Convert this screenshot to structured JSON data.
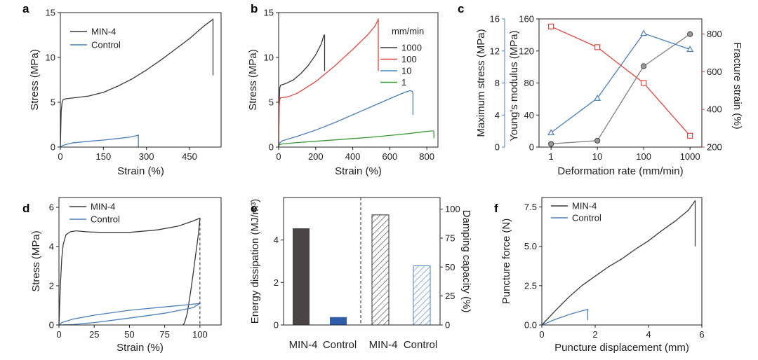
{
  "colors": {
    "black": "#3a3a3a",
    "blue": "#4a7fc1",
    "red": "#e8453c",
    "green": "#3a9a35",
    "gray": "#808080",
    "dark": "#4a4545",
    "navy": "#2f5fa8"
  },
  "chart_data": [
    {
      "panel": "a",
      "type": "line",
      "xlabel": "Strain (%)",
      "ylabel": "Stress (MPa)",
      "xlim": [
        0,
        560
      ],
      "ylim": [
        0,
        15
      ],
      "xticks": [
        "0",
        "150",
        "300",
        "450"
      ],
      "yticks": [
        "0",
        "5",
        "10",
        "15"
      ],
      "series": [
        {
          "name": "MIN-4",
          "color": "black",
          "x": [
            0,
            3,
            6,
            10,
            20,
            50,
            100,
            150,
            200,
            250,
            300,
            350,
            400,
            450,
            500,
            530,
            532,
            532
          ],
          "y": [
            0,
            4.0,
            5.0,
            5.3,
            5.4,
            5.5,
            5.7,
            6.1,
            6.8,
            7.6,
            8.6,
            9.7,
            10.9,
            12.1,
            13.5,
            14.2,
            14.3,
            8.0
          ]
        },
        {
          "name": "Control",
          "color": "blue",
          "x": [
            0,
            10,
            40,
            100,
            150,
            200,
            240,
            268,
            272,
            272
          ],
          "y": [
            0,
            0.2,
            0.45,
            0.65,
            0.78,
            0.95,
            1.1,
            1.3,
            1.35,
            0.0
          ]
        }
      ],
      "legend": [
        "MIN-4",
        "Control"
      ]
    },
    {
      "panel": "b",
      "type": "line",
      "xlabel": "Strain (%)",
      "ylabel": "Stress (MPa)",
      "xlim": [
        0,
        860
      ],
      "ylim": [
        0,
        15
      ],
      "xticks": [
        "0",
        "200",
        "400",
        "600",
        "800"
      ],
      "yticks": [
        "0",
        "5",
        "10",
        "15"
      ],
      "legend_title": "mm/min",
      "series": [
        {
          "name": "1000",
          "color": "black",
          "x": [
            0,
            3,
            6,
            10,
            40,
            80,
            120,
            160,
            200,
            230,
            245,
            248,
            248
          ],
          "y": [
            0,
            5.0,
            6.6,
            6.9,
            7.1,
            7.5,
            8.2,
            9.1,
            10.3,
            11.5,
            12.5,
            12.5,
            8.5
          ]
        },
        {
          "name": "100",
          "color": "red",
          "x": [
            0,
            3,
            6,
            10,
            50,
            100,
            200,
            300,
            400,
            480,
            520,
            535,
            538,
            538
          ],
          "y": [
            0,
            4.5,
            5.3,
            5.5,
            5.6,
            6.0,
            7.3,
            9.0,
            10.9,
            12.5,
            13.5,
            14.1,
            14.3,
            8.5
          ]
        },
        {
          "name": "10",
          "color": "blue",
          "x": [
            0,
            3,
            20,
            100,
            200,
            300,
            400,
            500,
            600,
            680,
            710,
            722,
            725,
            725
          ],
          "y": [
            0,
            0.4,
            0.7,
            1.2,
            1.9,
            2.7,
            3.6,
            4.5,
            5.4,
            6.1,
            6.3,
            6.2,
            6.0,
            3.6
          ]
        },
        {
          "name": "1",
          "color": "green",
          "x": [
            0,
            3,
            20,
            100,
            200,
            300,
            400,
            500,
            600,
            700,
            780,
            820,
            835,
            838,
            838
          ],
          "y": [
            0,
            0.25,
            0.35,
            0.5,
            0.65,
            0.8,
            0.95,
            1.1,
            1.3,
            1.5,
            1.7,
            1.8,
            1.8,
            1.7,
            1.0
          ]
        }
      ],
      "legend": [
        "1000",
        "100",
        "10",
        "1"
      ]
    },
    {
      "panel": "c",
      "type": "line",
      "xlabel": "Deformation rate (mm/min)",
      "ylabel_left_outer": "Maximum stress (MPa)",
      "ylabel_left_inner": "Young's modulus (MPa)",
      "ylabel_right": "Fracture strain (%)",
      "x": [
        1,
        10,
        100,
        1000
      ],
      "xticks": [
        "1",
        "10",
        "100",
        "1000"
      ],
      "yticks_left": [
        "0",
        "40",
        "80",
        "120",
        "160"
      ],
      "yticks_outer": [
        "0",
        "4",
        "8",
        "12",
        "16"
      ],
      "yticks_right": [
        "200",
        "400",
        "600",
        "800"
      ],
      "ylim_left": [
        0,
        160
      ],
      "ylim_outer": [
        0,
        16
      ],
      "ylim_right": [
        200,
        880
      ],
      "series": [
        {
          "name": "Young's modulus",
          "color": "gray",
          "marker": "circle",
          "axis": "left",
          "values": [
            4,
            8,
            101,
            141
          ]
        },
        {
          "name": "Maximum stress",
          "color": "blue",
          "marker": "triangle",
          "axis": "outer",
          "values": [
            1.8,
            6.1,
            14.2,
            12.2
          ]
        },
        {
          "name": "Fracture strain",
          "color": "red",
          "marker": "square",
          "axis": "right",
          "values": [
            840,
            730,
            540,
            260
          ]
        }
      ]
    },
    {
      "panel": "d",
      "type": "line",
      "xlabel": "Strain (%)",
      "ylabel": "Stress (MPa)",
      "xlim": [
        0,
        115
      ],
      "ylim": [
        0,
        6.5
      ],
      "xticks": [
        "0",
        "25",
        "50",
        "75",
        "100"
      ],
      "yticks": [
        "0",
        "2",
        "4",
        "6"
      ],
      "series": [
        {
          "name": "MIN-4",
          "color": "black",
          "x": [
            0,
            1,
            2,
            3,
            5,
            8,
            12,
            20,
            30,
            50,
            70,
            85,
            95,
            100,
            99,
            97,
            95,
            93,
            91,
            89,
            88
          ],
          "y": [
            0,
            2.0,
            3.4,
            4.1,
            4.6,
            4.75,
            4.8,
            4.75,
            4.72,
            4.72,
            4.85,
            5.05,
            5.3,
            5.45,
            4.7,
            3.6,
            2.5,
            1.5,
            0.6,
            0.1,
            0
          ]
        },
        {
          "name": "Control",
          "color": "blue",
          "x": [
            0,
            2,
            10,
            25,
            50,
            75,
            90,
            100,
            95,
            75,
            50,
            25,
            10,
            0
          ],
          "y": [
            0,
            0.12,
            0.3,
            0.5,
            0.75,
            0.92,
            1.02,
            1.1,
            0.88,
            0.6,
            0.35,
            0.12,
            0.02,
            0
          ]
        }
      ],
      "legend": [
        "MIN-4",
        "Control"
      ]
    },
    {
      "panel": "e",
      "type": "bar",
      "ylabel_left": "Energy dissipation (MJ/m³)",
      "ylabel_right": "Damping capacity (%)",
      "ylim_left": [
        0,
        6
      ],
      "ylim_right": [
        0,
        110
      ],
      "yticks_left": [
        "0",
        "2",
        "4"
      ],
      "yticks_right": [
        "0",
        "25",
        "50",
        "75",
        "100"
      ],
      "categories": [
        "MIN-4",
        "Control",
        "MIN-4",
        "Control"
      ],
      "energy": [
        4.55,
        0.37
      ],
      "damping": [
        95,
        51
      ]
    },
    {
      "panel": "f",
      "type": "line",
      "xlabel": "Puncture displacement (mm)",
      "ylabel": "Puncture force (N)",
      "xlim": [
        0,
        6
      ],
      "ylim": [
        0,
        8.1
      ],
      "xticks": [
        "0",
        "2",
        "4",
        "6"
      ],
      "yticks": [
        "0.0",
        "2.5",
        "5.0",
        "7.5"
      ],
      "series": [
        {
          "name": "MIN-4",
          "color": "black",
          "x": [
            0,
            0.5,
            1,
            1.5,
            2,
            2.5,
            3,
            3.5,
            4,
            4.5,
            5,
            5.5,
            5.75,
            5.75
          ],
          "y": [
            0,
            0.9,
            1.75,
            2.5,
            3.1,
            3.7,
            4.2,
            4.8,
            5.35,
            6.0,
            6.6,
            7.3,
            7.9,
            5.0
          ]
        },
        {
          "name": "Control",
          "color": "blue",
          "x": [
            0,
            0.5,
            1.0,
            1.4,
            1.7,
            1.72,
            1.72
          ],
          "y": [
            0,
            0.35,
            0.65,
            0.85,
            0.98,
            1.0,
            0.3
          ]
        }
      ],
      "legend": [
        "MIN-4",
        "Control"
      ]
    }
  ]
}
